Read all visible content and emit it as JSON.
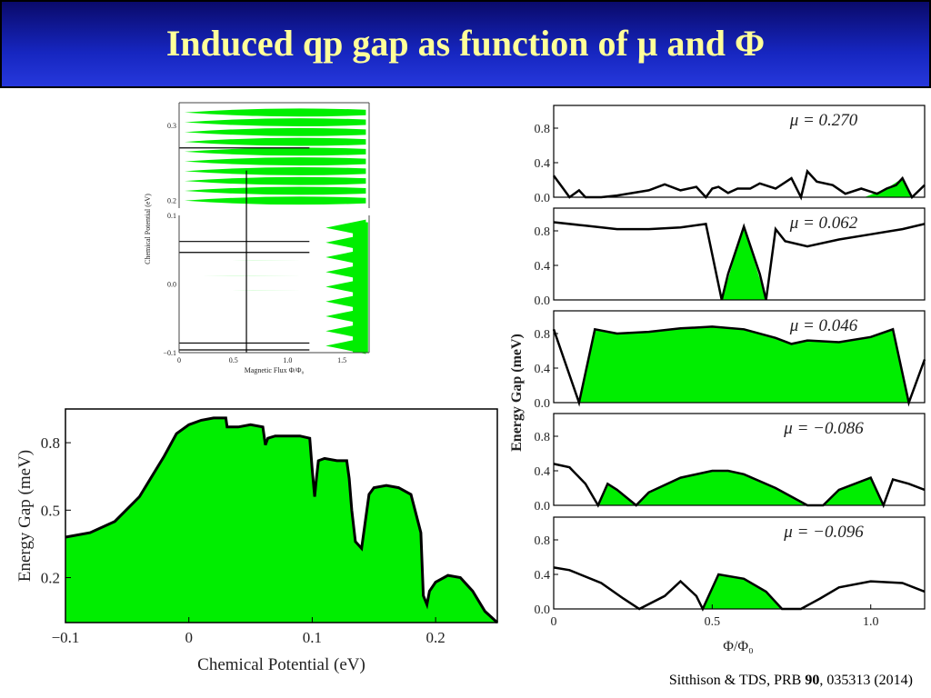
{
  "slide": {
    "title": "Induced qp gap as function of μ and Φ",
    "citation": {
      "authors": "Sitthison & TDS, PRB ",
      "volume": "90",
      "rest": ", 035313 (2014)"
    }
  },
  "colors": {
    "fill": "#00ee00",
    "line": "#000000",
    "title_text": "#ffff99",
    "title_bg": "#1a2ac8"
  },
  "chart_data": [
    {
      "id": "phase-diagram",
      "type": "area",
      "xlabel": "Magnetic Flux Φ/Φ₀",
      "ylabel": "Chemical Potential (eV)",
      "xticks": [
        "0",
        "0.5",
        "1.0",
        "1.5"
      ],
      "xlim": [
        0,
        1.75
      ],
      "yticks_top": [
        "0.2",
        "0.3"
      ],
      "yticks_bottom": [
        "−0.1",
        "0.0",
        "0.1"
      ],
      "ylim_bottom": [
        -0.1,
        0.1
      ],
      "ylim_top": [
        0.19,
        0.33
      ],
      "horizontal_lines_mu": [
        0.27,
        0.062,
        0.046,
        -0.086,
        -0.096
      ],
      "vertical_line_phi": 0.62
    },
    {
      "id": "gap-vs-mu",
      "type": "area",
      "xlabel": "Chemical Potential (eV)",
      "ylabel": "Energy Gap (meV)",
      "xlim": [
        -0.1,
        0.25
      ],
      "ylim": [
        0,
        0.95
      ],
      "xticks": [
        "−0.1",
        "0",
        "0.1",
        "0.2"
      ],
      "yticks": [
        "0.2",
        "0.5",
        "0.8"
      ],
      "x": [
        -0.1,
        -0.08,
        -0.06,
        -0.04,
        -0.03,
        -0.02,
        -0.01,
        0.0,
        0.01,
        0.02,
        0.03,
        0.031,
        0.04,
        0.05,
        0.06,
        0.062,
        0.064,
        0.07,
        0.08,
        0.09,
        0.098,
        0.1,
        0.102,
        0.103,
        0.105,
        0.11,
        0.12,
        0.128,
        0.13,
        0.132,
        0.135,
        0.14,
        0.143,
        0.146,
        0.15,
        0.16,
        0.17,
        0.18,
        0.188,
        0.19,
        0.193,
        0.195,
        0.2,
        0.21,
        0.22,
        0.23,
        0.24,
        0.25
      ],
      "y": [
        0.38,
        0.4,
        0.45,
        0.56,
        0.65,
        0.74,
        0.84,
        0.88,
        0.9,
        0.91,
        0.91,
        0.87,
        0.87,
        0.88,
        0.87,
        0.79,
        0.82,
        0.83,
        0.83,
        0.83,
        0.82,
        0.68,
        0.56,
        0.62,
        0.72,
        0.73,
        0.72,
        0.72,
        0.64,
        0.5,
        0.36,
        0.33,
        0.45,
        0.57,
        0.6,
        0.61,
        0.6,
        0.57,
        0.4,
        0.12,
        0.08,
        0.14,
        0.18,
        0.21,
        0.2,
        0.14,
        0.05,
        0.0
      ]
    },
    {
      "id": "gap-vs-phi-panels",
      "type": "area",
      "xlabel": "Φ/Φ₀",
      "ylabel": "Energy  Gap  (meV)",
      "xlim": [
        0,
        1.17
      ],
      "ylim": [
        0,
        1.0
      ],
      "xticks": [
        "0",
        "0.5",
        "1.0"
      ],
      "yticks": [
        "0.0",
        "0.4",
        "0.8"
      ],
      "panels": [
        {
          "label": "μ = 0.270",
          "line_x": [
            0,
            0.03,
            0.05,
            0.08,
            0.1,
            0.15,
            0.2,
            0.3,
            0.35,
            0.4,
            0.45,
            0.48,
            0.5,
            0.52,
            0.55,
            0.58,
            0.62,
            0.65,
            0.7,
            0.75,
            0.78,
            0.8,
            0.83,
            0.88,
            0.92,
            0.97,
            1.02,
            1.05,
            1.08,
            1.1,
            1.13,
            1.17
          ],
          "line_y": [
            0.25,
            0.1,
            0.0,
            0.08,
            0.0,
            0.0,
            0.02,
            0.08,
            0.15,
            0.08,
            0.12,
            0.0,
            0.1,
            0.12,
            0.05,
            0.1,
            0.1,
            0.16,
            0.1,
            0.22,
            0.0,
            0.3,
            0.18,
            0.14,
            0.04,
            0.1,
            0.04,
            0.1,
            0.14,
            0.22,
            0.0,
            0.14
          ],
          "fill_x": [
            0.98,
            1.05,
            1.1,
            1.13
          ],
          "fill_y": [
            0.0,
            0.1,
            0.22,
            0.0
          ]
        },
        {
          "label": "μ = 0.062",
          "line_x": [
            0,
            0.1,
            0.2,
            0.3,
            0.4,
            0.48,
            0.53,
            0.55,
            0.6,
            0.65,
            0.67,
            0.7,
            0.73,
            0.8,
            0.9,
            1.0,
            1.1,
            1.17
          ],
          "line_y": [
            0.9,
            0.86,
            0.82,
            0.82,
            0.84,
            0.88,
            0.0,
            0.3,
            0.85,
            0.3,
            0.0,
            0.82,
            0.68,
            0.62,
            0.7,
            0.76,
            0.82,
            0.88
          ],
          "fill_x": [
            0.53,
            0.6,
            0.67
          ],
          "fill_y": [
            0.0,
            0.85,
            0.0
          ]
        },
        {
          "label": "μ = 0.046",
          "line_x": [
            0,
            0.08,
            0.13,
            0.2,
            0.3,
            0.4,
            0.5,
            0.6,
            0.7,
            0.75,
            0.8,
            0.9,
            1.0,
            1.07,
            1.12,
            1.17
          ],
          "line_y": [
            0.85,
            0.0,
            0.85,
            0.8,
            0.82,
            0.86,
            0.88,
            0.85,
            0.75,
            0.68,
            0.72,
            0.7,
            0.76,
            0.85,
            0.0,
            0.5
          ],
          "fill_x": [
            0.08,
            0.13,
            0.2,
            0.3,
            0.4,
            0.5,
            0.6,
            0.7,
            0.75,
            0.8,
            0.9,
            1.0,
            1.07,
            1.12
          ],
          "fill_y": [
            0.0,
            0.85,
            0.8,
            0.82,
            0.86,
            0.88,
            0.85,
            0.75,
            0.68,
            0.72,
            0.7,
            0.76,
            0.85,
            0.0
          ]
        },
        {
          "label": "μ = −0.086",
          "line_x": [
            0,
            0.05,
            0.1,
            0.14,
            0.17,
            0.2,
            0.26,
            0.3,
            0.4,
            0.5,
            0.55,
            0.6,
            0.7,
            0.8,
            0.85,
            0.9,
            1.0,
            1.04,
            1.07,
            1.12,
            1.17
          ],
          "line_y": [
            0.48,
            0.44,
            0.25,
            0.0,
            0.25,
            0.18,
            0.0,
            0.15,
            0.32,
            0.4,
            0.4,
            0.36,
            0.2,
            0.0,
            0.0,
            0.18,
            0.32,
            0.0,
            0.3,
            0.25,
            0.18
          ],
          "fill_x": [
            0.14,
            0.17,
            0.2,
            0.26,
            0.3,
            0.4,
            0.5,
            0.55,
            0.6,
            0.7,
            0.8,
            0.85,
            0.9,
            1.0,
            1.04
          ],
          "fill_y": [
            0.0,
            0.25,
            0.18,
            0.0,
            0.15,
            0.32,
            0.4,
            0.4,
            0.36,
            0.2,
            0.0,
            0.0,
            0.18,
            0.32,
            0.0
          ]
        },
        {
          "label": "μ = −0.096",
          "line_x": [
            0,
            0.05,
            0.15,
            0.22,
            0.27,
            0.35,
            0.4,
            0.45,
            0.47,
            0.52,
            0.6,
            0.67,
            0.72,
            0.78,
            0.84,
            0.9,
            1.0,
            1.1,
            1.17
          ],
          "line_y": [
            0.48,
            0.45,
            0.3,
            0.12,
            0.0,
            0.15,
            0.32,
            0.15,
            0.0,
            0.4,
            0.35,
            0.2,
            0.0,
            0.0,
            0.12,
            0.25,
            0.32,
            0.3,
            0.2
          ],
          "fill_x": [
            0.47,
            0.52,
            0.6,
            0.67,
            0.72
          ],
          "fill_y": [
            0.0,
            0.4,
            0.35,
            0.2,
            0.0
          ]
        }
      ]
    }
  ]
}
